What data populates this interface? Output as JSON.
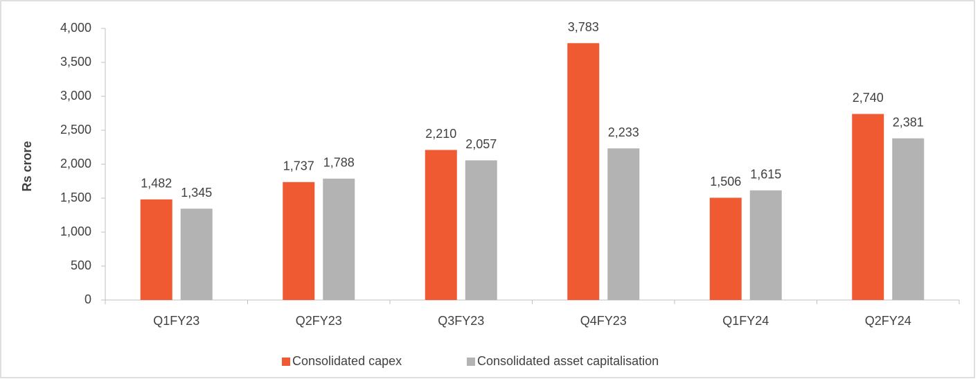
{
  "chart_data": {
    "type": "bar",
    "y_axis_label": "Rs crore",
    "categories": [
      "Q1FY23",
      "Q2FY23",
      "Q3FY23",
      "Q4FY23",
      "Q1FY24",
      "Q2FY24"
    ],
    "series": [
      {
        "name": "Consolidated capex",
        "color": "#f05a32",
        "values": [
          1482,
          1737,
          2210,
          3783,
          1506,
          2740
        ],
        "value_labels": [
          "1,482",
          "1,737",
          "2,210",
          "3,783",
          "1,506",
          "2,740"
        ]
      },
      {
        "name": "Consolidated asset capitalisation",
        "color": "#b3b3b3",
        "values": [
          1345,
          1788,
          2057,
          2233,
          1615,
          2381
        ],
        "value_labels": [
          "1,345",
          "1,788",
          "2,057",
          "2,233",
          "1,615",
          "2,381"
        ]
      }
    ],
    "ylim": [
      0,
      4000
    ],
    "yticks": [
      0,
      500,
      {
        "value": 1000,
        "label": "1,000"
      },
      {
        "value": 1500,
        "label": "1,500"
      },
      {
        "value": 2000,
        "label": "2,000"
      },
      {
        "value": 2500,
        "label": "2,500"
      },
      {
        "value": 3000,
        "label": "3,000"
      },
      {
        "value": 3500,
        "label": "3,500"
      },
      {
        "value": 4000,
        "label": "4,000"
      }
    ],
    "grid": false,
    "legend": "bottom"
  }
}
